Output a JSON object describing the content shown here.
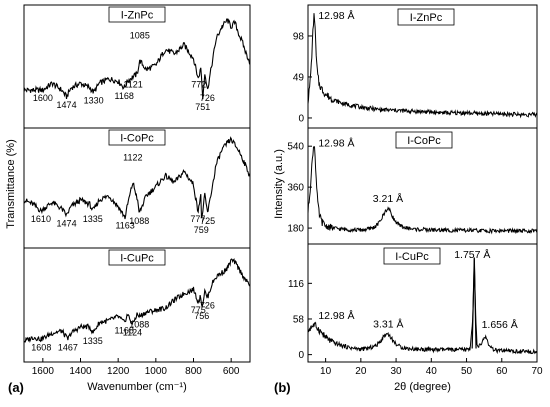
{
  "figure": {
    "label_a": "(a)",
    "label_b": "(b)"
  },
  "chart_data": [
    {
      "type": "line",
      "panel": "a",
      "xlabel": "Wavenumber (cm⁻¹)",
      "ylabel": "Transmittance (%)",
      "xlim": [
        1700,
        500
      ],
      "x_reversed": true,
      "xticks": [
        1600,
        1400,
        1200,
        1000,
        800,
        600
      ],
      "yticks_shown": false,
      "subplots": [
        {
          "label": "I-ZnPc",
          "series": [
            {
              "x": [
                1700,
                1650,
                1600,
                1550,
                1500,
                1474,
                1450,
                1400,
                1350,
                1330,
                1300,
                1250,
                1200,
                1168,
                1150,
                1121,
                1100,
                1085,
                1050,
                1000,
                950,
                900,
                850,
                800,
                775,
                760,
                751,
                740,
                726,
                700,
                680,
                650,
                620,
                600,
                580,
                560,
                540,
                520,
                500
              ],
              "y": [
                0.3,
                0.3,
                0.3,
                0.36,
                0.3,
                0.24,
                0.32,
                0.36,
                0.32,
                0.28,
                0.36,
                0.4,
                0.38,
                0.32,
                0.38,
                0.42,
                0.44,
                0.56,
                0.48,
                0.52,
                0.66,
                0.62,
                0.7,
                0.58,
                0.4,
                0.5,
                0.22,
                0.46,
                0.3,
                0.55,
                0.75,
                0.86,
                0.92,
                0.86,
                0.9,
                0.8,
                0.72,
                0.62,
                0.55
              ]
            }
          ],
          "annotations": [
            {
              "x": 1600,
              "text": "1600"
            },
            {
              "x": 1474,
              "text": "1474"
            },
            {
              "x": 1330,
              "text": "1330"
            },
            {
              "x": 1168,
              "text": "1168"
            },
            {
              "x": 1121,
              "text": "1121"
            },
            {
              "x": 1085,
              "text": "1085"
            },
            {
              "x": 772,
              "text": "772"
            },
            {
              "x": 751,
              "text": "751"
            },
            {
              "x": 726,
              "text": "726"
            }
          ]
        },
        {
          "label": "I-CoPc",
          "series": [
            {
              "x": [
                1700,
                1650,
                1610,
                1550,
                1500,
                1474,
                1450,
                1400,
                1350,
                1335,
                1300,
                1250,
                1200,
                1163,
                1150,
                1122,
                1100,
                1088,
                1050,
                1000,
                950,
                900,
                850,
                800,
                777,
                760,
                759,
                740,
                725,
                700,
                680,
                650,
                620,
                600,
                580,
                560,
                540,
                520,
                500
              ],
              "y": [
                0.4,
                0.36,
                0.3,
                0.38,
                0.32,
                0.26,
                0.34,
                0.4,
                0.36,
                0.3,
                0.4,
                0.44,
                0.34,
                0.24,
                0.36,
                0.56,
                0.42,
                0.28,
                0.44,
                0.52,
                0.62,
                0.56,
                0.66,
                0.54,
                0.3,
                0.46,
                0.2,
                0.44,
                0.28,
                0.52,
                0.72,
                0.85,
                0.92,
                0.95,
                0.9,
                0.85,
                0.78,
                0.7,
                0.62
              ]
            }
          ],
          "annotations": [
            {
              "x": 1610,
              "text": "1610"
            },
            {
              "x": 1474,
              "text": "1474"
            },
            {
              "x": 1335,
              "text": "1335"
            },
            {
              "x": 1163,
              "text": "1163"
            },
            {
              "x": 1122,
              "text": "1122"
            },
            {
              "x": 1088,
              "text": "1088"
            },
            {
              "x": 777,
              "text": "777"
            },
            {
              "x": 759,
              "text": "759"
            },
            {
              "x": 725,
              "text": "725"
            }
          ]
        },
        {
          "label": "I-CuPc",
          "series": [
            {
              "x": [
                1700,
                1650,
                1608,
                1550,
                1500,
                1467,
                1450,
                1400,
                1350,
                1335,
                1300,
                1250,
                1200,
                1168,
                1150,
                1124,
                1100,
                1088,
                1050,
                1000,
                950,
                900,
                850,
                800,
                775,
                760,
                756,
                740,
                726,
                700,
                680,
                650,
                620,
                600,
                580,
                560,
                540,
                520,
                500
              ],
              "y": [
                0.16,
                0.2,
                0.18,
                0.24,
                0.26,
                0.18,
                0.24,
                0.3,
                0.3,
                0.24,
                0.34,
                0.36,
                0.4,
                0.34,
                0.42,
                0.32,
                0.42,
                0.4,
                0.44,
                0.46,
                0.48,
                0.56,
                0.62,
                0.66,
                0.54,
                0.6,
                0.48,
                0.64,
                0.58,
                0.72,
                0.78,
                0.82,
                0.86,
                0.94,
                0.92,
                0.86,
                0.8,
                0.74,
                0.7
              ]
            }
          ],
          "annotations": [
            {
              "x": 1608,
              "text": "1608"
            },
            {
              "x": 1467,
              "text": "1467"
            },
            {
              "x": 1335,
              "text": "1335"
            },
            {
              "x": 1168,
              "text": "1168"
            },
            {
              "x": 1124,
              "text": "1124"
            },
            {
              "x": 1088,
              "text": "1088"
            },
            {
              "x": 775,
              "text": "775"
            },
            {
              "x": 756,
              "text": "756"
            },
            {
              "x": 726,
              "text": "726"
            }
          ]
        }
      ]
    },
    {
      "type": "line",
      "panel": "b",
      "xlabel": "2θ (degree)",
      "ylabel": "Intensity (a.u.)",
      "xlim": [
        5,
        70
      ],
      "xticks": [
        10,
        20,
        30,
        40,
        50,
        60,
        70
      ],
      "subplots": [
        {
          "label": "I-ZnPc",
          "ylim": [
            -12,
            135
          ],
          "yticks": [
            0,
            49,
            98
          ],
          "series": [
            {
              "x": [
                5,
                5.5,
                6,
                6.3,
                6.6,
                6.8,
                7,
                7.3,
                7.7,
                8.2,
                9,
                10,
                12,
                15,
                20,
                25,
                30,
                35,
                40,
                45,
                50,
                55,
                60,
                65,
                70
              ],
              "y": [
                20,
                38,
                68,
                95,
                118,
                125,
                110,
                75,
                52,
                40,
                34,
                28,
                22,
                17,
                13,
                10,
                9,
                8,
                7,
                6,
                6,
                5,
                5,
                4,
                4
              ]
            }
          ],
          "annotations": [
            {
              "x": 6.8,
              "text": "12.98 Å"
            }
          ]
        },
        {
          "label": "I-CoPc",
          "ylim": [
            110,
            620
          ],
          "yticks": [
            180,
            360,
            540
          ],
          "series": [
            {
              "x": [
                5,
                5.5,
                6,
                6.3,
                6.6,
                6.8,
                7,
                7.3,
                7.7,
                8.2,
                9,
                10,
                12,
                15,
                18,
                20,
                22,
                24,
                25,
                26,
                27,
                27.7,
                28.5,
                29.5,
                31,
                33,
                35,
                40,
                45,
                50,
                55,
                60,
                65,
                70
              ],
              "y": [
                250,
                330,
                430,
                500,
                540,
                548,
                510,
                400,
                300,
                240,
                205,
                190,
                180,
                175,
                172,
                172,
                175,
                185,
                200,
                225,
                255,
                268,
                250,
                215,
                190,
                180,
                175,
                172,
                170,
                170,
                168,
                168,
                167,
                167
              ]
            }
          ],
          "annotations": [
            {
              "x": 6.8,
              "text": "12.98 Å"
            },
            {
              "x": 27.7,
              "text": "3.21 Å"
            }
          ]
        },
        {
          "label": "I-CuPc",
          "ylim": [
            -12,
            180
          ],
          "yticks": [
            0,
            58,
            116
          ],
          "series": [
            {
              "x": [
                5,
                6,
                6.8,
                7.5,
                8.5,
                10,
                12,
                15,
                18,
                20,
                22,
                24,
                25,
                26,
                26.5,
                27,
                27.8,
                28.5,
                29.5,
                31,
                33,
                36,
                40,
                45,
                50,
                51,
                51.8,
                52.2,
                52.6,
                53,
                54,
                55,
                55.4,
                56,
                56.5,
                58,
                60,
                65,
                70
              ],
              "y": [
                38,
                46,
                48,
                45,
                38,
                28,
                20,
                14,
                10,
                9,
                10,
                14,
                18,
                26,
                30,
                33,
                34,
                28,
                20,
                13,
                10,
                9,
                8,
                8,
                8,
                10,
                60,
                158,
                60,
                12,
                16,
                26,
                30,
                22,
                12,
                7,
                6,
                5,
                5
              ]
            }
          ],
          "annotations": [
            {
              "x": 6.8,
              "text": "12.98 Å"
            },
            {
              "x": 27.8,
              "text": "3.31 Å"
            },
            {
              "x": 52.2,
              "text": "1.757 Å"
            },
            {
              "x": 55.4,
              "text": "1.656 Å"
            }
          ]
        }
      ]
    }
  ]
}
